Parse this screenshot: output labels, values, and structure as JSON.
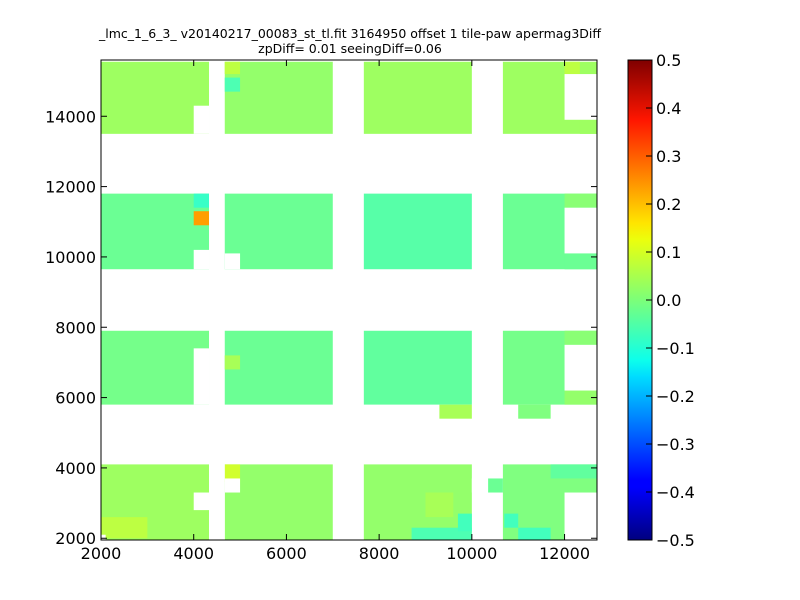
{
  "chart_data": {
    "type": "heatmap",
    "title_line1": "_lmc_1_6_3_ v20140217_00083_st_tl.fit 3164950 offset 1 tile-paw apermag3Diff",
    "title_line2": "zpDiff= 0.01 seeingDiff=0.06",
    "xlim": [
      2000,
      12700
    ],
    "ylim": [
      1950,
      15600
    ],
    "xticks": [
      2000,
      4000,
      6000,
      8000,
      10000,
      12000
    ],
    "xtick_labels": [
      "2000",
      "4000",
      "6000",
      "8000",
      "10000",
      "12000"
    ],
    "yticks": [
      2000,
      4000,
      6000,
      8000,
      10000,
      12000,
      14000
    ],
    "ytick_labels": [
      "2000",
      "4000",
      "6000",
      "8000",
      "10000",
      "12000",
      "14000"
    ],
    "colorbar": {
      "colormap": "jet",
      "vmin": -0.5,
      "vmax": 0.5,
      "ticks": [
        0.5,
        0.4,
        0.3,
        0.2,
        0.1,
        0.0,
        -0.1,
        -0.2,
        -0.3,
        -0.4,
        -0.5
      ],
      "tick_labels": [
        "0.5",
        "0.4",
        "0.3",
        "0.2",
        "0.1",
        "0.0",
        "−0.1",
        "−0.2",
        "−0.3",
        "−0.4",
        "−0.5"
      ]
    },
    "tiles": [
      {
        "x0": 2000,
        "x1": 4330,
        "y0": 13500,
        "y1": 15550,
        "value": 0.03
      },
      {
        "x0": 4670,
        "x1": 7000,
        "y0": 13500,
        "y1": 15550,
        "value": 0.02
      },
      {
        "x0": 7670,
        "x1": 10000,
        "y0": 13500,
        "y1": 15550,
        "value": 0.03
      },
      {
        "x0": 10670,
        "x1": 12700,
        "y0": 13500,
        "y1": 15550,
        "value": 0.03
      },
      {
        "x0": 2000,
        "x1": 4330,
        "y0": 9650,
        "y1": 11800,
        "value": -0.02
      },
      {
        "x0": 4670,
        "x1": 7000,
        "y0": 9650,
        "y1": 11800,
        "value": -0.02
      },
      {
        "x0": 7670,
        "x1": 10000,
        "y0": 9650,
        "y1": 11800,
        "value": -0.04
      },
      {
        "x0": 10670,
        "x1": 12700,
        "y0": 9650,
        "y1": 11800,
        "value": -0.02
      },
      {
        "x0": 2000,
        "x1": 4330,
        "y0": 5800,
        "y1": 7900,
        "value": -0.01
      },
      {
        "x0": 4670,
        "x1": 7000,
        "y0": 5800,
        "y1": 7900,
        "value": -0.02
      },
      {
        "x0": 7670,
        "x1": 10000,
        "y0": 5800,
        "y1": 7900,
        "value": -0.03
      },
      {
        "x0": 10670,
        "x1": 12700,
        "y0": 5800,
        "y1": 7900,
        "value": -0.01
      },
      {
        "x0": 2000,
        "x1": 4330,
        "y0": 1950,
        "y1": 4100,
        "value": 0.03
      },
      {
        "x0": 4670,
        "x1": 7000,
        "y0": 1950,
        "y1": 4100,
        "value": 0.02
      },
      {
        "x0": 7670,
        "x1": 10000,
        "y0": 1950,
        "y1": 4100,
        "value": 0.02
      },
      {
        "x0": 10670,
        "x1": 12700,
        "y0": 1950,
        "y1": 4100,
        "value": 0.0
      }
    ],
    "cells": [
      {
        "x0": 4000,
        "x1": 4330,
        "y0": 10900,
        "y1": 11300,
        "value": 0.22
      },
      {
        "x0": 4000,
        "x1": 4330,
        "y0": 11400,
        "y1": 11800,
        "value": -0.07
      },
      {
        "x0": 4670,
        "x1": 5000,
        "y0": 3600,
        "y1": 4100,
        "value": 0.08
      },
      {
        "x0": 4670,
        "x1": 5000,
        "y0": 15200,
        "y1": 15550,
        "value": 0.06
      },
      {
        "x0": 4670,
        "x1": 5000,
        "y0": 14700,
        "y1": 15100,
        "value": -0.05
      },
      {
        "x0": 4670,
        "x1": 5000,
        "y0": 6800,
        "y1": 7200,
        "value": 0.04
      },
      {
        "x0": 8700,
        "x1": 10000,
        "y0": 1950,
        "y1": 2300,
        "value": -0.05
      },
      {
        "x0": 9700,
        "x1": 10000,
        "y0": 2200,
        "y1": 2700,
        "value": -0.06
      },
      {
        "x0": 10700,
        "x1": 11000,
        "y0": 2300,
        "y1": 2700,
        "value": -0.06
      },
      {
        "x0": 11000,
        "x1": 11700,
        "y0": 1950,
        "y1": 2300,
        "value": -0.06
      },
      {
        "x0": 11700,
        "x1": 12700,
        "y0": 3700,
        "y1": 4100,
        "value": -0.03
      },
      {
        "x0": 10350,
        "x1": 10670,
        "y0": 3300,
        "y1": 3700,
        "value": -0.02
      },
      {
        "x0": 9300,
        "x1": 10000,
        "y0": 5400,
        "y1": 5800,
        "value": 0.04
      },
      {
        "x0": 11000,
        "x1": 11700,
        "y0": 5400,
        "y1": 5800,
        "value": 0.0
      },
      {
        "x0": 12000,
        "x1": 12700,
        "y0": 7500,
        "y1": 7900,
        "value": 0.01
      },
      {
        "x0": 12000,
        "x1": 12700,
        "y0": 5800,
        "y1": 6200,
        "value": 0.02
      },
      {
        "x0": 12000,
        "x1": 12700,
        "y0": 9650,
        "y1": 10100,
        "value": -0.02
      },
      {
        "x0": 12000,
        "x1": 12700,
        "y0": 11400,
        "y1": 11800,
        "value": 0.01
      },
      {
        "x0": 12000,
        "x1": 12330,
        "y0": 15200,
        "y1": 15550,
        "value": 0.06
      },
      {
        "x0": 12330,
        "x1": 12700,
        "y0": 13500,
        "y1": 13900,
        "value": 0.03
      },
      {
        "x0": 2000,
        "x1": 3000,
        "y0": 2000,
        "y1": 2600,
        "value": 0.06
      },
      {
        "x0": 9000,
        "x1": 9600,
        "y0": 2600,
        "y1": 3300,
        "value": 0.04
      }
    ],
    "masks": [
      {
        "x0": 4000,
        "x1": 4330,
        "y0": 13500,
        "y1": 14300
      },
      {
        "x0": 4000,
        "x1": 4330,
        "y0": 9650,
        "y1": 10200
      },
      {
        "x0": 4000,
        "x1": 4330,
        "y0": 5800,
        "y1": 7400
      },
      {
        "x0": 4000,
        "x1": 4330,
        "y0": 2800,
        "y1": 3300
      },
      {
        "x0": 4670,
        "x1": 5000,
        "y0": 9650,
        "y1": 10100
      },
      {
        "x0": 4670,
        "x1": 5000,
        "y0": 3300,
        "y1": 3700
      },
      {
        "x0": 4330,
        "x1": 4670,
        "y0": 1950,
        "y1": 4100
      },
      {
        "x0": 12000,
        "x1": 12700,
        "y0": 1950,
        "y1": 3300
      },
      {
        "x0": 12000,
        "x1": 12700,
        "y0": 6200,
        "y1": 7500
      },
      {
        "x0": 12000,
        "x1": 12700,
        "y0": 10100,
        "y1": 11400
      },
      {
        "x0": 12000,
        "x1": 12700,
        "y0": 13900,
        "y1": 15200
      },
      {
        "x0": 10000,
        "x1": 10350,
        "y0": 3300,
        "y1": 3700
      },
      {
        "x0": 2000,
        "x1": 2100,
        "y0": 1950,
        "y1": 2100
      }
    ]
  }
}
